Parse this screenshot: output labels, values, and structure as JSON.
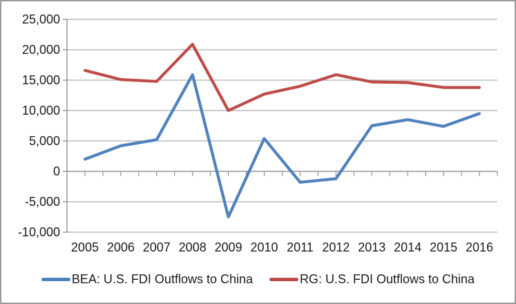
{
  "chart_data": {
    "type": "line",
    "title": "",
    "xlabel": "",
    "ylabel": "",
    "categories": [
      "2005",
      "2006",
      "2007",
      "2008",
      "2009",
      "2010",
      "2011",
      "2012",
      "2013",
      "2014",
      "2015",
      "2016"
    ],
    "series": [
      {
        "name": "BEA: U.S. FDI Outflows to China",
        "color": "#4F81BD",
        "values": [
          2000,
          4200,
          5200,
          15900,
          -7500,
          5400,
          -1800,
          -1200,
          7500,
          8500,
          7400,
          9500
        ]
      },
      {
        "name": "RG: U.S. FDI Outflows to China",
        "color": "#BE4B48",
        "values": [
          16600,
          15100,
          14800,
          20900,
          10000,
          12700,
          14000,
          15900,
          14700,
          14600,
          13800,
          13800
        ]
      }
    ],
    "ylim": [
      -10000,
      25000
    ],
    "ytick_interval": 5000,
    "ytick_labels": [
      "25,000",
      "20,000",
      "15,000",
      "10,000",
      "5,000",
      "0",
      "-5,000",
      "-10,000"
    ],
    "grid": true,
    "legend_position": "bottom",
    "style": {
      "gridline_color": "#999999",
      "axis_color": "#808080",
      "text_color": "#1a1a1a",
      "frame_border_color": "#9b9b9b",
      "background": "#ffffff",
      "line_width": 4.2
    }
  }
}
